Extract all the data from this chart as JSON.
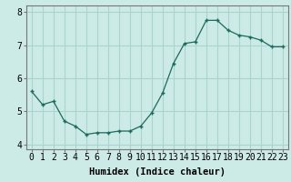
{
  "x": [
    0,
    1,
    2,
    3,
    4,
    5,
    6,
    7,
    8,
    9,
    10,
    11,
    12,
    13,
    14,
    15,
    16,
    17,
    18,
    19,
    20,
    21,
    22,
    23
  ],
  "y": [
    5.6,
    5.2,
    5.3,
    4.7,
    4.55,
    4.3,
    4.35,
    4.35,
    4.4,
    4.4,
    4.55,
    4.95,
    5.55,
    6.45,
    7.05,
    7.1,
    7.75,
    7.75,
    7.45,
    7.3,
    7.25,
    7.15,
    6.95,
    6.95
  ],
  "ylim": [
    3.85,
    8.2
  ],
  "yticks": [
    4,
    5,
    6,
    7,
    8
  ],
  "xlabel": "Humidex (Indice chaleur)",
  "line_color": "#1a6b5e",
  "marker": "+",
  "bg_color": "#cceae6",
  "grid_color": "#aad4cf",
  "xlabel_fontsize": 7.5,
  "tick_fontsize": 7
}
